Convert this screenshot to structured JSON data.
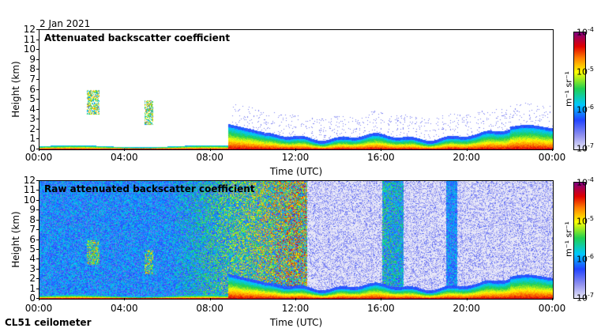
{
  "header": {
    "date": "2 Jan 2021"
  },
  "footer": {
    "instrument": "CL51 ceilometer"
  },
  "chart_data": [
    {
      "type": "heatmap",
      "title": "Attenuated backscatter coefficient",
      "xlabel": "Time (UTC)",
      "ylabel": "Height (km)",
      "x_ticks": [
        "00:00",
        "04:00",
        "08:00",
        "12:00",
        "16:00",
        "20:00",
        "00:00"
      ],
      "y_ticks": [
        "0",
        "1",
        "2",
        "3",
        "4",
        "5",
        "6",
        "7",
        "8",
        "9",
        "10",
        "11",
        "12"
      ],
      "ylim": [
        0,
        12
      ],
      "xlim_hours": [
        0,
        24
      ],
      "colorbar": {
        "scale": "log",
        "min_label": "10",
        "min_exp": "-7",
        "l6": "10",
        "l6_exp": "-6",
        "l5": "10",
        "l5_exp": "-5",
        "max_label": "10",
        "max_exp": "-4",
        "unit": "m⁻¹ sr⁻¹"
      }
    },
    {
      "type": "heatmap",
      "title": "Raw attenuated backscatter coefficient",
      "xlabel": "Time (UTC)",
      "ylabel": "Height (km)",
      "x_ticks": [
        "00:00",
        "04:00",
        "08:00",
        "12:00",
        "16:00",
        "20:00",
        "00:00"
      ],
      "y_ticks": [
        "0",
        "1",
        "2",
        "3",
        "4",
        "5",
        "6",
        "7",
        "8",
        "9",
        "10",
        "11",
        "12"
      ],
      "ylim": [
        0,
        12
      ],
      "xlim_hours": [
        0,
        24
      ],
      "colorbar": {
        "scale": "log",
        "min_label": "10",
        "min_exp": "-7",
        "l6": "10",
        "l6_exp": "-6",
        "l5": "10",
        "l5_exp": "-5",
        "max_label": "10",
        "max_exp": "-4",
        "unit": "m⁻¹ sr⁻¹"
      }
    }
  ]
}
